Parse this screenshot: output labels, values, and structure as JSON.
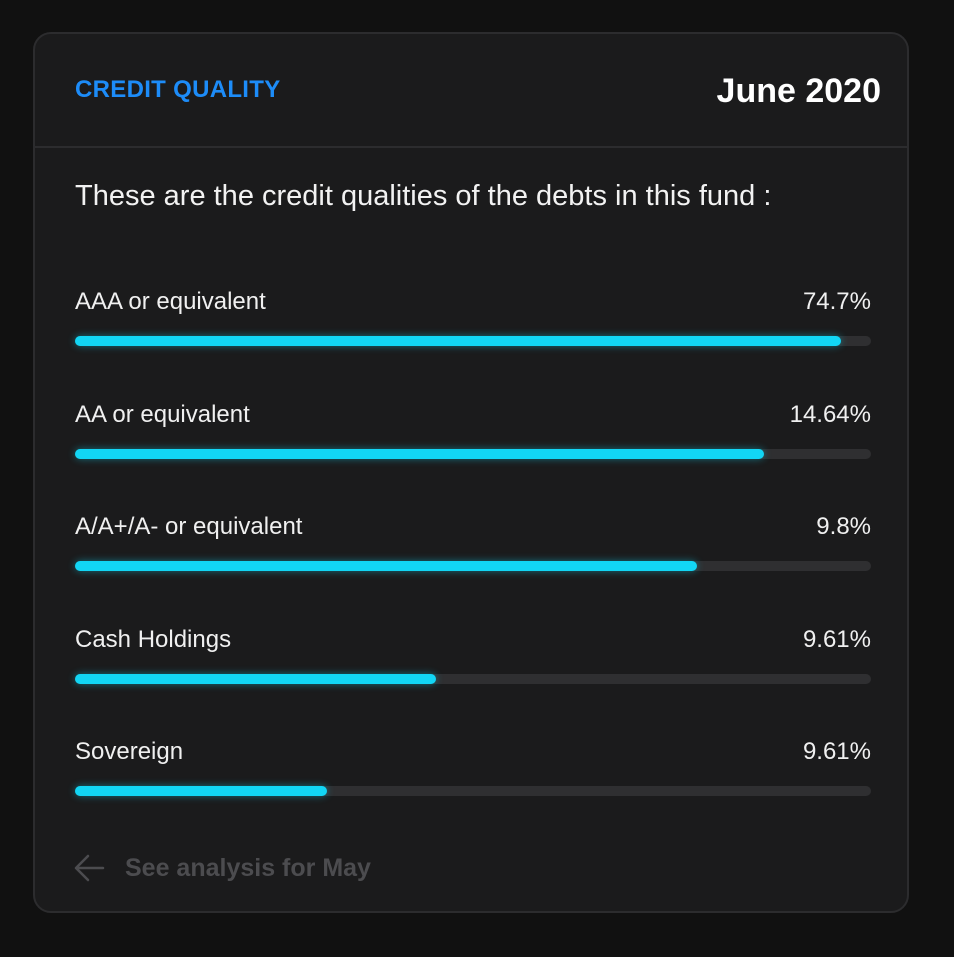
{
  "card": {
    "section_label": "CREDIT QUALITY",
    "date": "June 2020",
    "intro": "These are the credit qualities of the debts in this fund :"
  },
  "items": [
    {
      "label": "AAA or equivalent",
      "value": "74.7%",
      "fill_fraction": 0.962
    },
    {
      "label": "AA or equivalent",
      "value": "14.64%",
      "fill_fraction": 0.865
    },
    {
      "label": "A/A+/A- or equivalent",
      "value": "9.8%",
      "fill_fraction": 0.781
    },
    {
      "label": "Cash Holdings",
      "value": "9.61%",
      "fill_fraction": 0.454
    },
    {
      "label": "Sovereign",
      "value": "9.61%",
      "fill_fraction": 0.317
    }
  ],
  "footer": {
    "link_label": "See analysis for May",
    "icon": "arrow-left-icon"
  },
  "colors": {
    "accent_blue": "#1d8cf8",
    "bar_fill": "#12d6f5",
    "bar_track": "#2f2f31",
    "card_bg": "#1b1b1c",
    "muted_text": "#4c4c4f"
  }
}
